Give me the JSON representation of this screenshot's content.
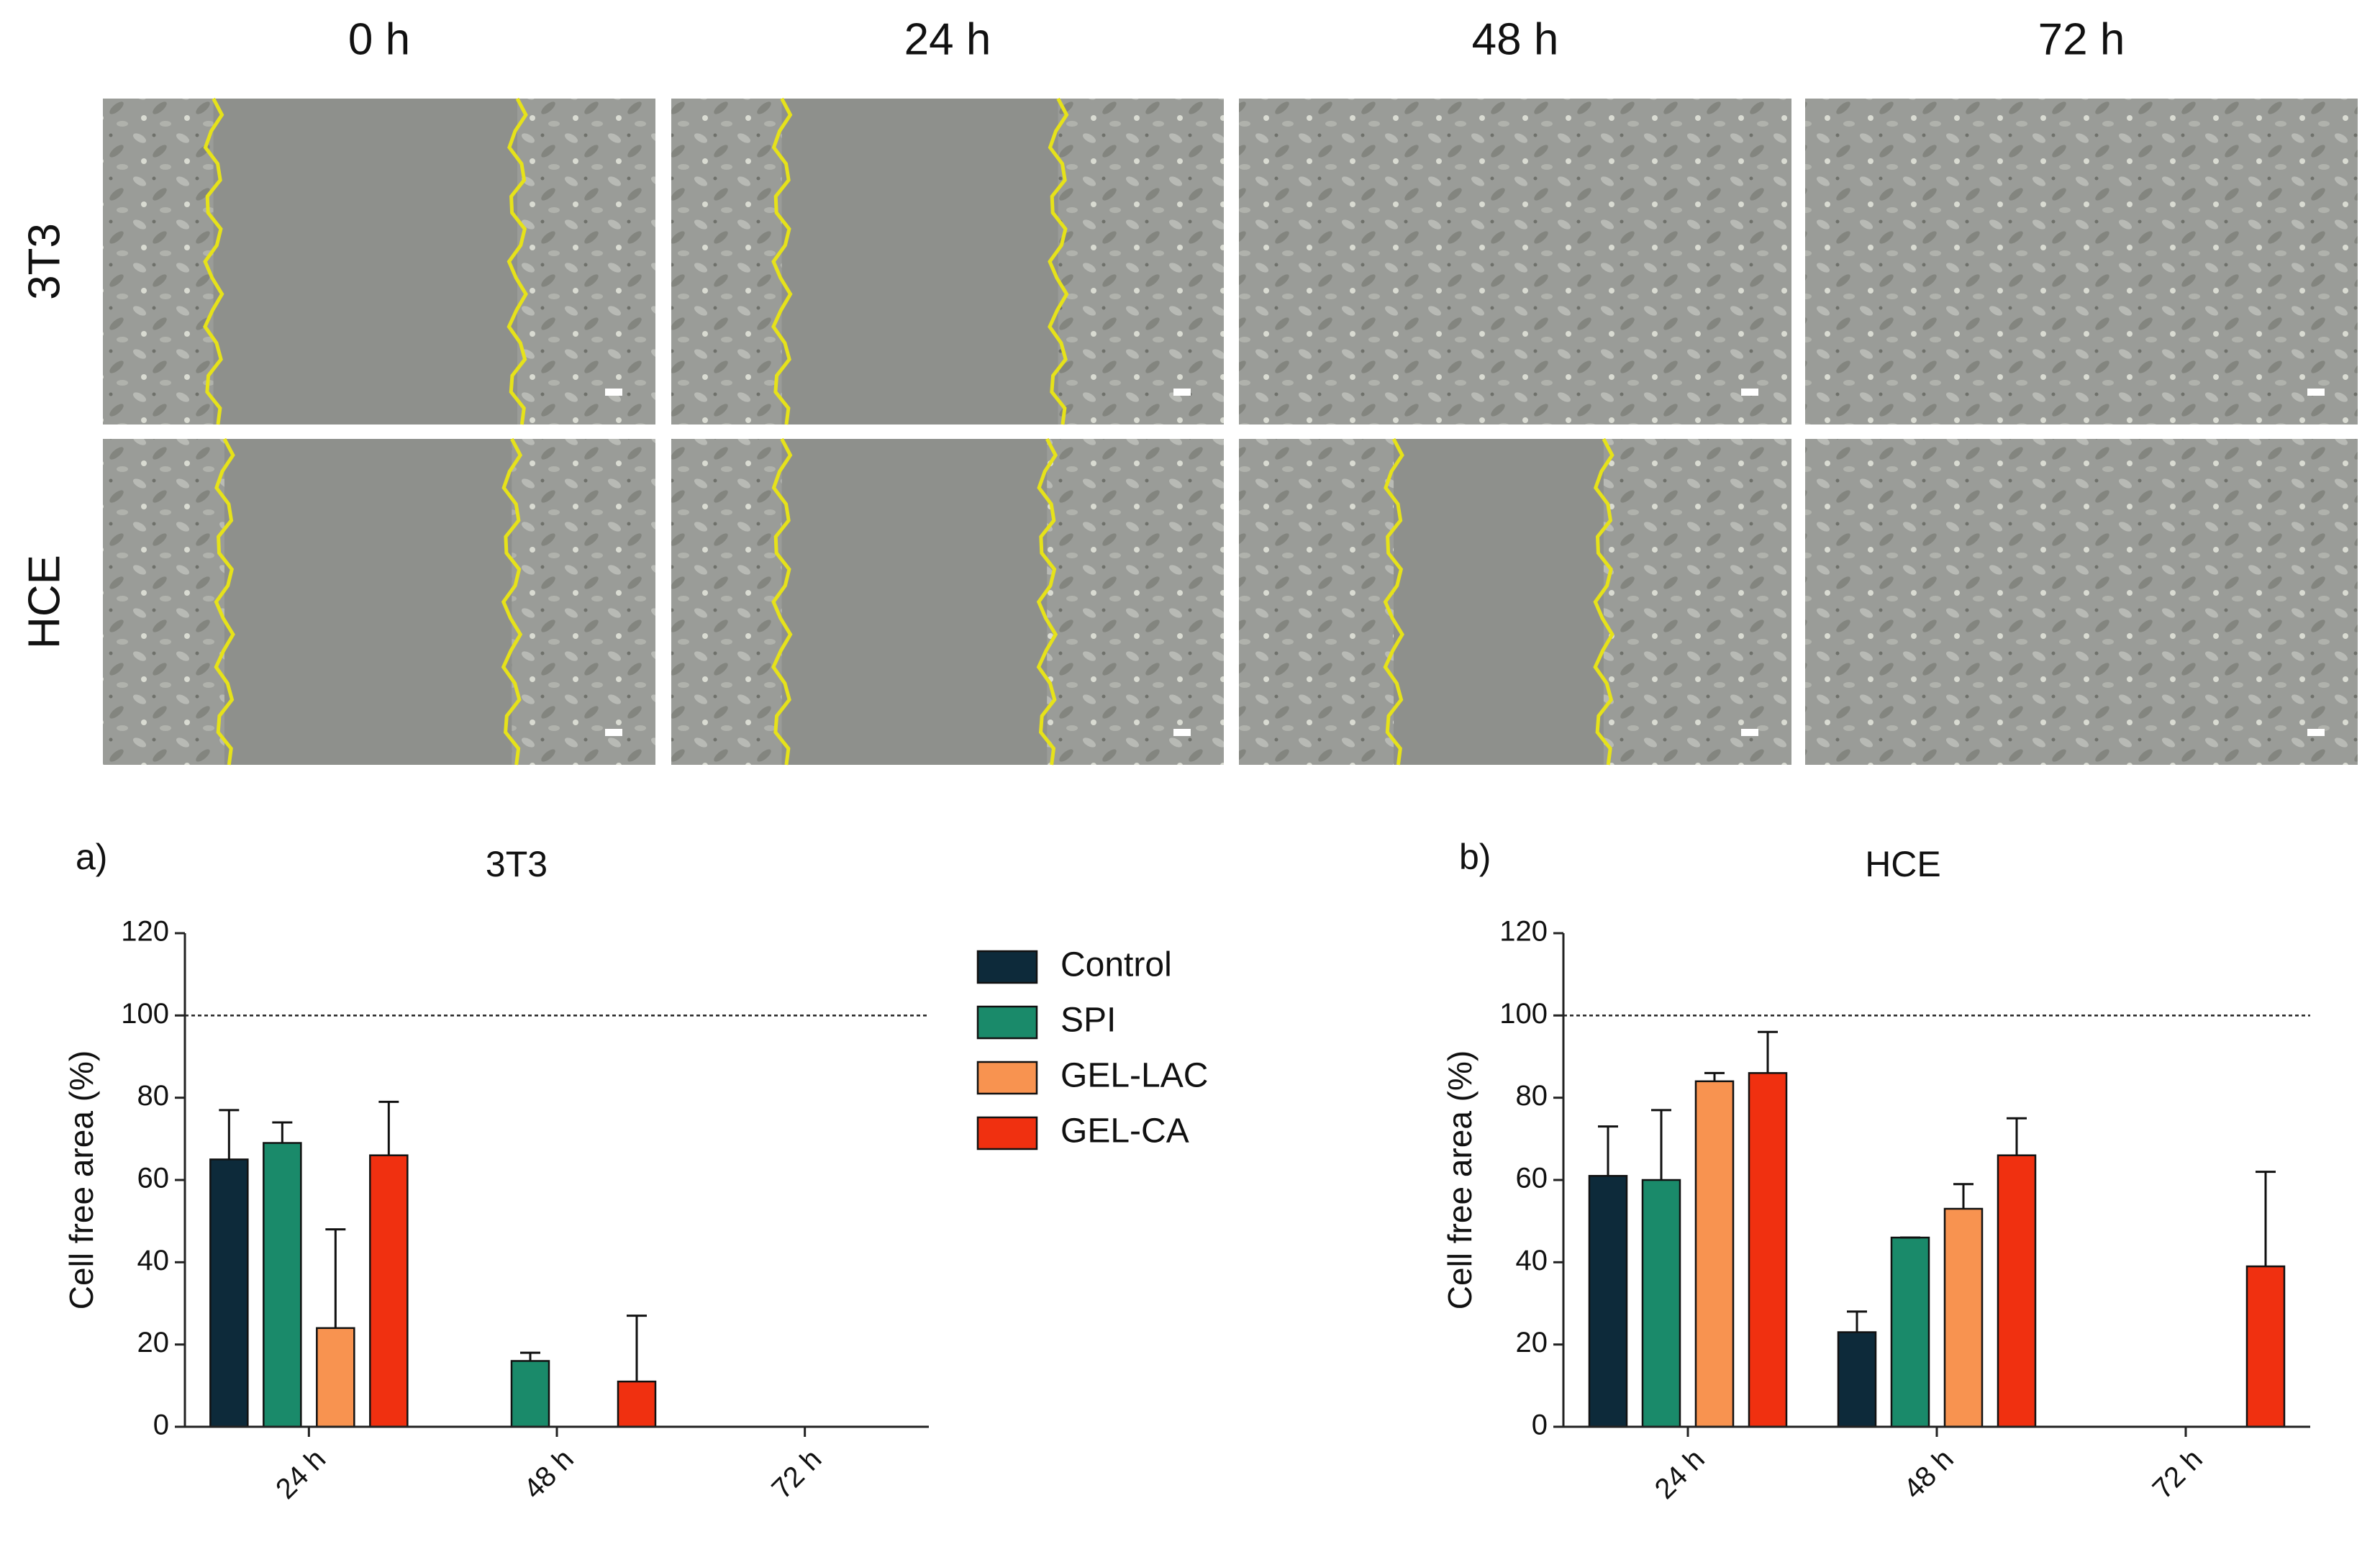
{
  "micrographs": {
    "columns": [
      "0 h",
      "24 h",
      "48 h",
      "72 h"
    ],
    "rows": [
      "3T3",
      "HCE"
    ]
  },
  "chart_data": [
    {
      "type": "bar",
      "panel_label": "a)",
      "title": "3T3",
      "y_label": "Cell free area (%)",
      "categories": [
        "24 h",
        "48 h",
        "72 h"
      ],
      "series": [
        {
          "name": "Control",
          "color": "#0d2a3a",
          "values": [
            65,
            0,
            0
          ],
          "errors": [
            12,
            null,
            null
          ]
        },
        {
          "name": "SPI",
          "color": "#1a8a6a",
          "values": [
            69,
            16,
            0
          ],
          "errors": [
            5,
            2,
            null
          ]
        },
        {
          "name": "GEL-LAC",
          "color": "#f89350",
          "values": [
            24,
            0,
            0
          ],
          "errors": [
            24,
            null,
            null
          ]
        },
        {
          "name": "GEL-CA",
          "color": "#f03010",
          "values": [
            66,
            11,
            0
          ],
          "errors": [
            13,
            16,
            null
          ]
        }
      ],
      "ylim": [
        0,
        120
      ],
      "yticks": [
        0,
        20,
        40,
        60,
        80,
        100,
        120
      ],
      "reference_line": 100
    },
    {
      "type": "bar",
      "panel_label": "b)",
      "title": "HCE",
      "y_label": "Cell free area (%)",
      "categories": [
        "24 h",
        "48 h",
        "72 h"
      ],
      "series": [
        {
          "name": "Control",
          "color": "#0d2a3a",
          "values": [
            61,
            23,
            0
          ],
          "errors": [
            12,
            5,
            null
          ]
        },
        {
          "name": "SPI",
          "color": "#1a8a6a",
          "values": [
            60,
            46,
            0
          ],
          "errors": [
            17,
            0,
            null
          ]
        },
        {
          "name": "GEL-LAC",
          "color": "#f89350",
          "values": [
            84,
            53,
            0
          ],
          "errors": [
            2,
            6,
            null
          ]
        },
        {
          "name": "GEL-CA",
          "color": "#f03010",
          "values": [
            86,
            66,
            39
          ],
          "errors": [
            10,
            9,
            23
          ]
        }
      ],
      "ylim": [
        0,
        120
      ],
      "yticks": [
        0,
        20,
        40,
        60,
        80,
        100,
        120
      ],
      "reference_line": 100
    }
  ]
}
